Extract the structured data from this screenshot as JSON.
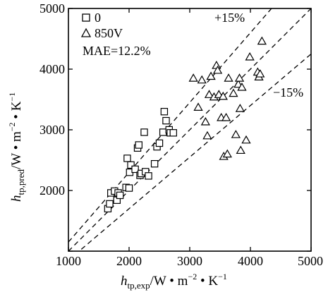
{
  "chart_data": {
    "type": "scatter",
    "xlim": [
      1000,
      5000
    ],
    "ylim": [
      1000,
      5000
    ],
    "xticks": [
      "1000",
      "2000",
      "3000",
      "4000",
      "5000"
    ],
    "yticks": [
      "2000",
      "3000",
      "4000",
      "5000"
    ],
    "xlabel": {
      "main": "h",
      "sub": "tp,exp",
      "rest": "/W • m",
      "sup1": "−2",
      "mid": " • K",
      "sup2": "−1"
    },
    "ylabel": {
      "main": "h",
      "sub": "tp,pred",
      "rest": "/W • m",
      "sup1": "−2",
      "mid": " • K",
      "sup2": "−1"
    },
    "legend": [
      {
        "marker": "square",
        "label": "0"
      },
      {
        "marker": "triangle",
        "label": "850V"
      }
    ],
    "mae_text": "MAE=12.2%",
    "reference_lines": [
      {
        "label": "+15%",
        "factor": 1.15
      },
      {
        "label": "",
        "factor": 1.0
      },
      {
        "label": "−15%",
        "factor": 0.85
      }
    ],
    "series": [
      {
        "name": "0",
        "marker": "square",
        "points": [
          [
            1650,
            1700
          ],
          [
            1680,
            1780
          ],
          [
            1700,
            1960
          ],
          [
            1760,
            1990
          ],
          [
            1800,
            1840
          ],
          [
            1820,
            1960
          ],
          [
            1850,
            1920
          ],
          [
            1950,
            2050
          ],
          [
            1970,
            2530
          ],
          [
            2000,
            2040
          ],
          [
            2010,
            2300
          ],
          [
            2030,
            2420
          ],
          [
            2100,
            2350
          ],
          [
            2140,
            2700
          ],
          [
            2160,
            2750
          ],
          [
            2180,
            2250
          ],
          [
            2200,
            2280
          ],
          [
            2250,
            2960
          ],
          [
            2270,
            2310
          ],
          [
            2320,
            2240
          ],
          [
            2420,
            2440
          ],
          [
            2460,
            2720
          ],
          [
            2500,
            2780
          ],
          [
            2560,
            2960
          ],
          [
            2580,
            3300
          ],
          [
            2610,
            3150
          ],
          [
            2660,
            3000
          ],
          [
            2680,
            2950
          ],
          [
            2730,
            2950
          ]
        ]
      },
      {
        "name": "850V",
        "marker": "triangle",
        "points": [
          [
            3060,
            3850
          ],
          [
            3140,
            3370
          ],
          [
            3200,
            3820
          ],
          [
            3260,
            3130
          ],
          [
            3290,
            2900
          ],
          [
            3320,
            3580
          ],
          [
            3350,
            3880
          ],
          [
            3400,
            3540
          ],
          [
            3440,
            4060
          ],
          [
            3460,
            3980
          ],
          [
            3480,
            3580
          ],
          [
            3520,
            3200
          ],
          [
            3550,
            3550
          ],
          [
            3560,
            2560
          ],
          [
            3600,
            3200
          ],
          [
            3620,
            2600
          ],
          [
            3640,
            3850
          ],
          [
            3720,
            3600
          ],
          [
            3760,
            2920
          ],
          [
            3800,
            3750
          ],
          [
            3820,
            3850
          ],
          [
            3830,
            3350
          ],
          [
            3840,
            2660
          ],
          [
            3860,
            3700
          ],
          [
            3930,
            2830
          ],
          [
            3990,
            4200
          ],
          [
            4120,
            3950
          ],
          [
            4140,
            3870
          ],
          [
            4160,
            3920
          ],
          [
            4190,
            4460
          ]
        ]
      }
    ]
  }
}
